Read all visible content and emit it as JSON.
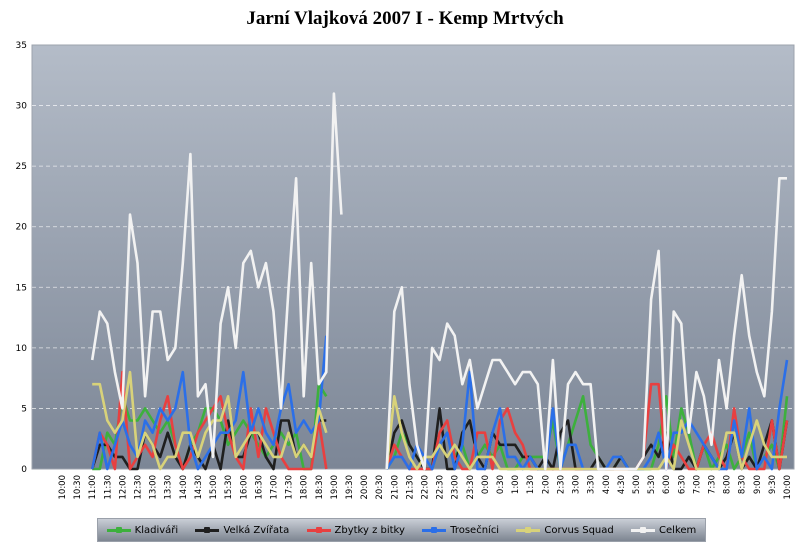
{
  "chart_data": {
    "type": "line",
    "title": "Jarní Vlajková 2007 I - Kemp Mrtvých",
    "xlabel": "",
    "ylabel": "",
    "ylim": [
      0,
      35
    ],
    "yticks": [
      "0",
      "5",
      "10",
      "15",
      "20",
      "25",
      "30",
      "35"
    ],
    "grid": true,
    "legend_position": "bottom",
    "x": [
      "10:00",
      "10:15",
      "10:30",
      "10:45",
      "11:00",
      "11:15",
      "11:30",
      "11:45",
      "12:00",
      "12:15",
      "12:30",
      "12:45",
      "13:00",
      "13:15",
      "13:30",
      "13:45",
      "14:00",
      "14:15",
      "14:30",
      "14:45",
      "15:00",
      "15:15",
      "15:30",
      "15:45",
      "16:00",
      "16:15",
      "16:30",
      "16:45",
      "17:00",
      "17:15",
      "17:30",
      "17:45",
      "18:00",
      "18:15",
      "18:30",
      "18:45",
      "19:00",
      "19:15",
      "19:30",
      "19:45",
      "20:00",
      "20:15",
      "20:30",
      "20:45",
      "21:00",
      "21:15",
      "21:30",
      "21:45",
      "22:00",
      "22:15",
      "22:30",
      "22:45",
      "23:00",
      "23:15",
      "23:30",
      "23:45",
      "0:00",
      "0:15",
      "0:30",
      "0:45",
      "1:00",
      "1:15",
      "1:30",
      "1:45",
      "2:00",
      "2:15",
      "2:30",
      "2:45",
      "3:00",
      "3:15",
      "3:30",
      "3:45",
      "4:00",
      "4:15",
      "4:30",
      "4:45",
      "5:00",
      "5:15",
      "5:30",
      "5:45",
      "6:00",
      "6:15",
      "6:30",
      "6:45",
      "7:00",
      "7:15",
      "7:30",
      "7:45",
      "8:00",
      "8:15",
      "8:30",
      "8:45",
      "9:00",
      "9:15",
      "9:30",
      "9:45",
      "10:00"
    ],
    "x_tick_labels": [
      "10:00",
      "10:30",
      "11:00",
      "11:30",
      "12:00",
      "12:30",
      "13:00",
      "13:30",
      "14:00",
      "14:30",
      "15:00",
      "15:30",
      "16:00",
      "16:30",
      "17:00",
      "17:30",
      "18:00",
      "18:30",
      "19:00",
      "19:30",
      "20:00",
      "20:30",
      "21:00",
      "21:30",
      "22:00",
      "22:30",
      "23:00",
      "23:30",
      "0:00",
      "0:30",
      "1:00",
      "1:30",
      "2:00",
      "2:30",
      "3:00",
      "3:30",
      "4:00",
      "4:30",
      "5:00",
      "5:30",
      "6:00",
      "6:30",
      "7:00",
      "7:30",
      "8:00",
      "8:30",
      "9:00",
      "9:30",
      "10:00"
    ],
    "series": [
      {
        "name": "Kladiváři",
        "color": "#3db03d",
        "values": [
          null,
          null,
          null,
          null,
          0,
          0,
          3,
          2,
          6,
          4,
          4,
          5,
          4,
          3,
          4,
          2,
          0,
          2,
          3,
          5,
          5,
          4,
          2,
          3,
          4,
          3,
          2,
          1,
          2,
          3,
          2,
          3,
          0,
          0,
          7,
          6,
          null,
          null,
          null,
          null,
          null,
          null,
          null,
          0,
          1,
          3,
          2,
          1,
          0,
          0,
          2,
          3,
          1,
          2,
          0,
          1,
          2,
          1,
          2,
          0,
          0,
          1,
          1,
          1,
          1,
          4,
          0,
          2,
          4,
          6,
          2,
          1,
          0,
          0,
          1,
          0,
          0,
          0,
          0,
          2,
          6,
          1,
          5,
          3,
          0,
          2,
          0,
          1,
          2,
          0,
          1,
          3,
          0,
          1,
          2,
          0,
          6
        ]
      },
      {
        "name": "Velká Zvířata",
        "color": "#1f1f1f",
        "values": [
          null,
          null,
          null,
          null,
          0,
          2,
          2,
          1,
          1,
          0,
          0,
          3,
          2,
          1,
          3,
          1,
          0,
          2,
          1,
          0,
          2,
          0,
          4,
          1,
          1,
          3,
          3,
          1,
          0,
          4,
          4,
          1,
          2,
          1,
          4,
          4,
          null,
          null,
          null,
          null,
          null,
          null,
          null,
          0,
          3,
          4,
          2,
          1,
          0,
          0,
          5,
          0,
          0,
          3,
          4,
          1,
          0,
          3,
          2,
          2,
          2,
          1,
          1,
          0,
          1,
          0,
          3,
          4,
          0,
          0,
          0,
          1,
          0,
          0,
          1,
          0,
          0,
          1,
          2,
          1,
          3,
          0,
          0,
          1,
          0,
          2,
          1,
          0,
          1,
          3,
          0,
          1,
          0,
          2,
          4,
          0,
          4
        ]
      },
      {
        "name": "Zbytky z bitky",
        "color": "#e84040",
        "values": [
          null,
          null,
          null,
          null,
          0,
          3,
          2,
          0,
          8,
          0,
          1,
          2,
          1,
          4,
          6,
          2,
          0,
          1,
          3,
          4,
          5,
          6,
          3,
          1,
          0,
          5,
          1,
          5,
          3,
          1,
          0,
          0,
          0,
          0,
          4,
          0,
          null,
          null,
          null,
          null,
          null,
          null,
          null,
          0,
          2,
          1,
          0,
          0,
          0,
          0,
          3,
          4,
          1,
          0,
          0,
          3,
          3,
          0,
          4,
          5,
          3,
          2,
          0,
          0,
          0,
          0,
          0,
          0,
          0,
          0,
          0,
          0,
          0,
          0,
          0,
          0,
          0,
          1,
          7,
          7,
          0,
          2,
          1,
          0,
          0,
          2,
          3,
          1,
          0,
          5,
          1,
          0,
          0,
          0,
          4,
          0,
          4
        ]
      },
      {
        "name": "Trosečníci",
        "color": "#2b6fe8",
        "values": [
          null,
          null,
          null,
          null,
          0,
          3,
          0,
          2,
          4,
          2,
          1,
          4,
          3,
          5,
          4,
          5,
          8,
          2,
          0,
          1,
          2,
          3,
          3,
          4,
          8,
          3,
          5,
          3,
          2,
          5,
          7,
          3,
          4,
          3,
          4,
          11,
          null,
          null,
          null,
          null,
          null,
          null,
          null,
          0,
          1,
          1,
          0,
          2,
          1,
          0,
          2,
          3,
          0,
          2,
          8,
          0,
          0,
          3,
          5,
          1,
          1,
          0,
          1,
          0,
          0,
          5,
          0,
          2,
          2,
          0,
          0,
          0,
          0,
          1,
          1,
          0,
          0,
          0,
          1,
          3,
          0,
          3,
          3,
          4,
          3,
          2,
          1,
          0,
          0,
          4,
          1,
          5,
          0,
          1,
          0,
          5,
          9
        ]
      },
      {
        "name": "Corvus Squad",
        "color": "#d8d27a",
        "values": [
          null,
          null,
          null,
          null,
          7,
          7,
          4,
          3,
          4,
          8,
          1,
          3,
          2,
          0,
          1,
          1,
          3,
          3,
          1,
          3,
          4,
          4,
          6,
          1,
          2,
          3,
          3,
          2,
          1,
          1,
          3,
          1,
          2,
          1,
          5,
          3,
          null,
          null,
          null,
          null,
          null,
          null,
          null,
          0,
          6,
          3,
          1,
          0,
          1,
          1,
          2,
          1,
          2,
          1,
          0,
          1,
          1,
          1,
          0,
          0,
          0,
          0,
          0,
          0,
          0,
          0,
          0,
          0,
          0,
          0,
          0,
          0,
          0,
          0,
          0,
          0,
          0,
          0,
          0,
          0,
          1,
          0,
          4,
          2,
          0,
          0,
          0,
          0,
          3,
          3,
          0,
          2,
          4,
          2,
          1,
          1,
          1
        ]
      },
      {
        "name": "Celkem",
        "color": "#f2f2f2",
        "values": [
          null,
          null,
          null,
          null,
          9,
          13,
          12,
          8,
          5,
          21,
          17,
          6,
          13,
          13,
          9,
          10,
          17,
          26,
          6,
          7,
          1,
          12,
          15,
          10,
          17,
          18,
          15,
          17,
          13,
          5,
          15,
          24,
          6,
          17,
          7,
          8,
          31,
          21,
          null,
          null,
          null,
          null,
          null,
          0,
          13,
          15,
          7,
          2,
          0,
          10,
          9,
          12,
          11,
          7,
          9,
          5,
          7,
          9,
          9,
          8,
          7,
          8,
          8,
          7,
          0,
          9,
          0,
          7,
          8,
          7,
          7,
          0,
          0,
          0,
          0,
          0,
          0,
          1,
          14,
          18,
          0,
          13,
          12,
          3,
          8,
          6,
          2,
          9,
          5,
          11,
          16,
          11,
          8,
          6,
          13,
          24,
          24
        ]
      }
    ]
  }
}
